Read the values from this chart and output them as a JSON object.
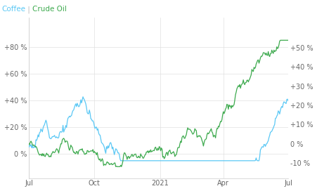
{
  "title_coffee": "Coffee",
  "title_separator": " | ",
  "title_crude": "Crude Oil",
  "coffee_color": "#5bc8f5",
  "crude_color": "#3daa4e",
  "separator_color": "#bbbbbb",
  "background_color": "#ffffff",
  "grid_color": "#e0e0e0",
  "left_yticks": [
    0,
    20,
    40,
    60,
    80
  ],
  "right_yticks": [
    -10,
    0,
    10,
    20,
    30,
    40,
    50
  ],
  "left_ylim": [
    -18,
    102
  ],
  "right_ylim": [
    -18,
    66
  ],
  "xlabel_ticks": [
    "Jul",
    "Oct",
    "2021",
    "Apr",
    "Jul"
  ],
  "x_tick_positions": [
    0,
    92,
    184,
    273,
    364
  ],
  "linewidth": 0.9,
  "title_fontsize": 7.5,
  "tick_fontsize": 7.0
}
